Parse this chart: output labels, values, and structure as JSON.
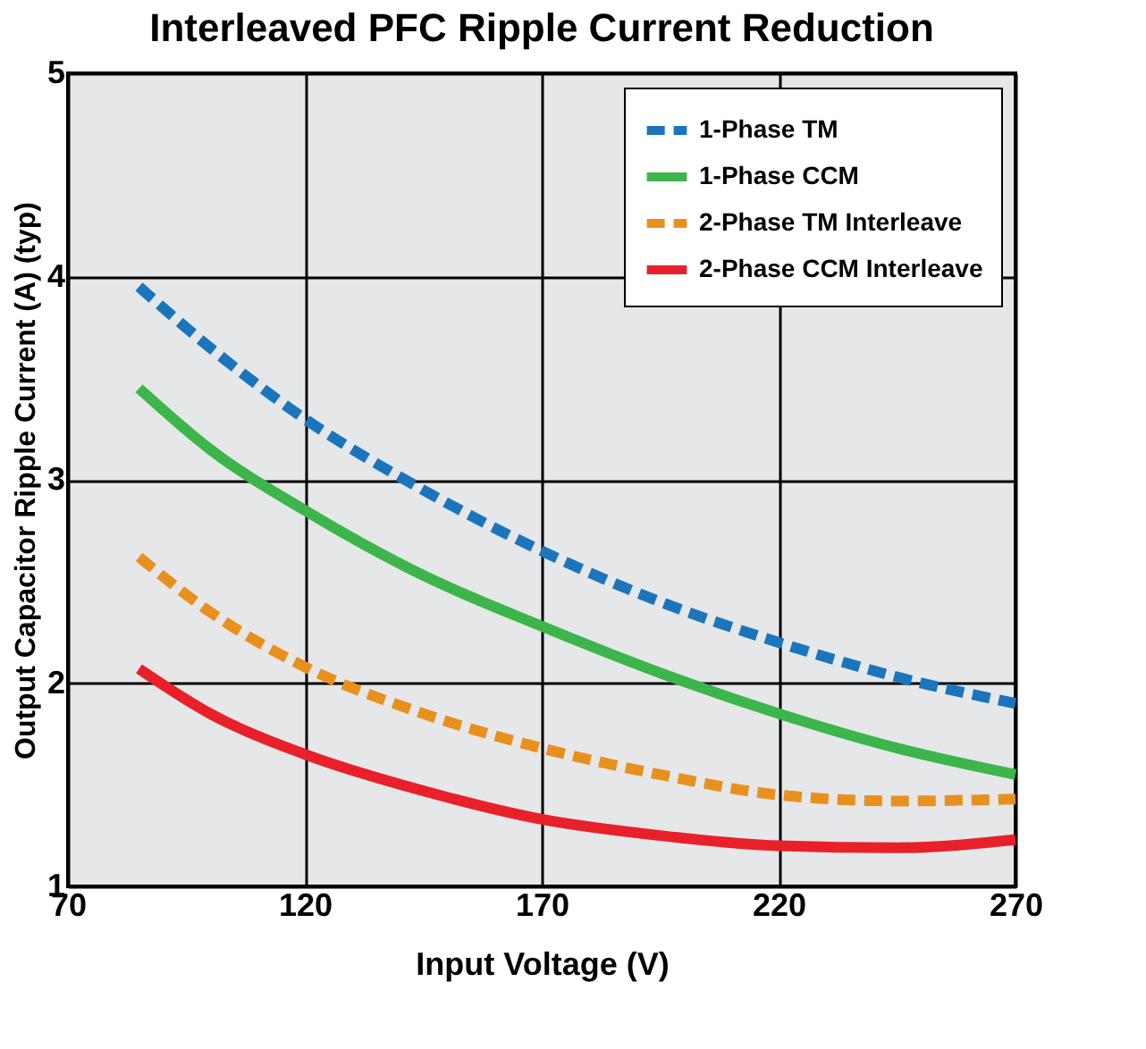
{
  "chart_data": {
    "type": "line",
    "title": "Interleaved PFC Ripple Current Reduction",
    "xlabel": "Input Voltage (V)",
    "ylabel": "Output Capacitor Ripple Current (A) (typ)",
    "x": [
      85,
      100,
      120,
      145,
      170,
      195,
      220,
      245,
      270
    ],
    "series": [
      {
        "name": "1-Phase TM",
        "color": "#1a75bc",
        "line_style": "dashed",
        "values": [
          3.95,
          3.65,
          3.3,
          2.95,
          2.65,
          2.4,
          2.2,
          2.03,
          1.9
        ]
      },
      {
        "name": "1-Phase CCM",
        "color": "#3cb54a",
        "line_style": "solid",
        "values": [
          3.45,
          3.15,
          2.85,
          2.53,
          2.28,
          2.05,
          1.85,
          1.68,
          1.55
        ]
      },
      {
        "name": "2-Phase TM Interleave",
        "color": "#e8901e",
        "line_style": "dashed",
        "values": [
          2.62,
          2.35,
          2.08,
          1.85,
          1.68,
          1.55,
          1.45,
          1.42,
          1.43
        ]
      },
      {
        "name": "2-Phase CCM Interleave",
        "color": "#e8202a",
        "line_style": "solid",
        "values": [
          2.07,
          1.85,
          1.65,
          1.47,
          1.33,
          1.25,
          1.2,
          1.19,
          1.23
        ]
      }
    ],
    "xlim": [
      70,
      270
    ],
    "xticks": [
      70,
      120,
      170,
      220,
      270
    ],
    "ylim": [
      1,
      5
    ],
    "yticks": [
      1,
      2,
      3,
      4,
      5
    ],
    "grid": true,
    "legend": "top right",
    "marker": "none"
  }
}
